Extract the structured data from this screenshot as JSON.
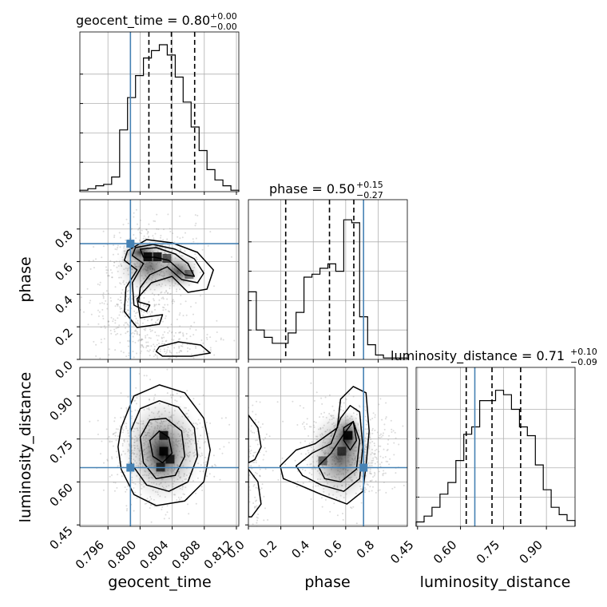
{
  "chart_data": {
    "type": "corner",
    "parameters": [
      "geocent_time",
      "phase",
      "luminosity_distance"
    ],
    "truth_color": "#4682b4",
    "titles": [
      {
        "name": "geocent_time",
        "median": "0.80",
        "plus": "+0.00",
        "minus": "−0.00"
      },
      {
        "name": "phase",
        "median": "0.50",
        "plus": "+0.15",
        "minus": "−0.27"
      },
      {
        "name": "luminosity_distance",
        "median": "0.71",
        "plus": "+0.10",
        "minus": "−0.09"
      }
    ],
    "axes": {
      "geocent_time": {
        "range": [
          0.7925,
          0.8123
        ],
        "ticks": [
          "0.796",
          "0.800",
          "0.804",
          "0.808",
          "0.812"
        ],
        "tick_values": [
          0.796,
          0.8,
          0.804,
          0.808,
          0.812
        ]
      },
      "phase": {
        "range": [
          0.0,
          0.98
        ],
        "ticks": [
          "0.0",
          "0.2",
          "0.4",
          "0.6",
          "0.8"
        ],
        "tick_values": [
          0.0,
          0.2,
          0.4,
          0.6,
          0.8
        ]
      },
      "luminosity_distance": {
        "range": [
          0.445,
          1.0
        ],
        "ticks": [
          "0.45",
          "0.60",
          "0.75",
          "0.90"
        ],
        "tick_values": [
          0.45,
          0.6,
          0.75,
          0.9
        ]
      }
    },
    "truths": {
      "geocent_time": 0.7988,
      "phase": 0.71,
      "luminosity_distance": 0.65
    },
    "quantiles": {
      "geocent_time": [
        0.8011,
        0.8039,
        0.8068
      ],
      "phase": [
        0.23,
        0.5,
        0.65
      ],
      "luminosity_distance": [
        0.62,
        0.71,
        0.81
      ]
    },
    "histograms": {
      "geocent_time": [
        0.01,
        0.02,
        0.04,
        0.05,
        0.1,
        0.42,
        0.64,
        0.79,
        0.91,
        0.96,
        1.0,
        0.93,
        0.78,
        0.61,
        0.44,
        0.28,
        0.15,
        0.08,
        0.04,
        0.01
      ],
      "phase": [
        0.46,
        0.2,
        0.15,
        0.11,
        0.11,
        0.18,
        0.32,
        0.56,
        0.58,
        0.62,
        0.65,
        0.6,
        0.95,
        0.93,
        0.29,
        0.1,
        0.03,
        0.01,
        0.01,
        0.01
      ],
      "luminosity_distance": [
        0.03,
        0.07,
        0.13,
        0.22,
        0.3,
        0.45,
        0.63,
        0.68,
        0.86,
        0.86,
        0.93,
        0.9,
        0.8,
        0.68,
        0.62,
        0.42,
        0.25,
        0.13,
        0.08,
        0.04
      ]
    },
    "grid": true,
    "xlabels": [
      "geocent_time",
      "phase",
      "luminosity_distance"
    ],
    "ylabels": [
      "",
      "phase",
      "luminosity_distance"
    ]
  }
}
